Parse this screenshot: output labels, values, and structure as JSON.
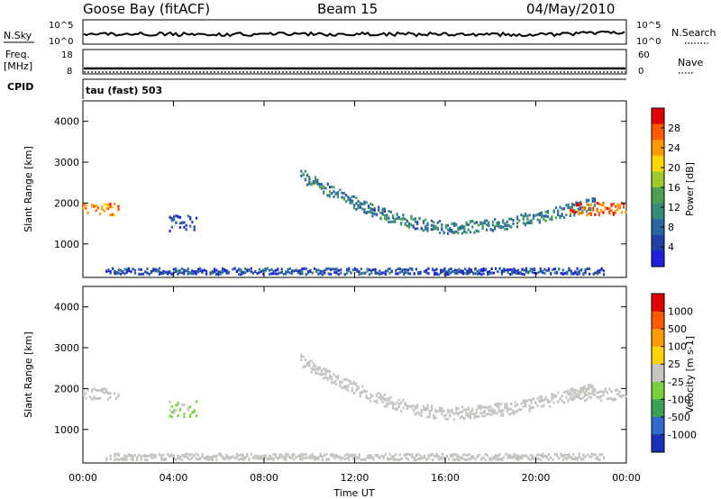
{
  "header": {
    "title": "Goose Bay (fitACF)",
    "beam": "Beam 15",
    "date": "04/May/2010"
  },
  "top_panels": {
    "nsky_label": "N.Sky",
    "nsky_ticks": [
      "10^5",
      "10^0"
    ],
    "nsearch_label": "N.Search",
    "freq_label": "Freq.",
    "freq_unit": "[MHz]",
    "freq_ticks": [
      "18",
      "8"
    ],
    "nave_label": "Nave",
    "nave_ticks": [
      "60",
      "0"
    ],
    "cpid_label": "CPID",
    "cpid_text": "tau (fast) 503"
  },
  "chart_data": [
    {
      "type": "heatmap",
      "title": "",
      "ylabel": "Slant Range [km]",
      "xlabel": "",
      "xlim": [
        0,
        24
      ],
      "ylim": [
        180,
        4500
      ],
      "yticks": [
        1000,
        2000,
        3000,
        4000
      ],
      "colorbar": {
        "label": "Power [dB]",
        "ticks": [
          "4",
          "8",
          "12",
          "16",
          "20",
          "24",
          "28"
        ],
        "colors": [
          "#1f1fe0",
          "#2040a8",
          "#2a66a0",
          "#3a8a7a",
          "#4aa050",
          "#9ccc2a",
          "#ffd700",
          "#ff9a00",
          "#ff5a00",
          "#e00000"
        ]
      },
      "features": [
        {
          "name": "near-range band",
          "t": [
            1,
            23
          ],
          "range_km": [
            250,
            400
          ],
          "power_db": 6
        },
        {
          "name": "curved echo arc",
          "t": [
            9.6,
            22.6
          ],
          "range_km_start": 2700,
          "range_km_min": 1400,
          "range_km_end": 2000,
          "power_db": 10
        },
        {
          "name": "early echo",
          "t": [
            0,
            1.6
          ],
          "range_km": [
            1700,
            2000
          ],
          "power_db": 24
        },
        {
          "name": "late echo",
          "t": [
            21.5,
            24
          ],
          "range_km": [
            1700,
            2000
          ],
          "power_db": 26
        },
        {
          "name": "patch 04-05 UT",
          "t": [
            3.8,
            5.0
          ],
          "range_km": [
            1300,
            1700
          ],
          "power_db": 6
        }
      ]
    },
    {
      "type": "heatmap",
      "title": "",
      "ylabel": "Slant Range [km]",
      "xlabel": "Time UT",
      "xlim": [
        0,
        24
      ],
      "ylim": [
        180,
        4500
      ],
      "yticks": [
        1000,
        2000,
        3000,
        4000
      ],
      "xticks": [
        "00:00",
        "04:00",
        "08:00",
        "12:00",
        "16:00",
        "20:00",
        "00:00"
      ],
      "colorbar": {
        "label": "Velocity [m s-1]",
        "ticks": [
          "1000",
          "500",
          "100",
          "25",
          "-25",
          "-100",
          "-500",
          "-1000"
        ],
        "colors": [
          "#1a2fb8",
          "#2f6ad0",
          "#3ca058",
          "#7ad03c",
          "#c4c4c0",
          "#ffd200",
          "#ff9a00",
          "#ff5a00",
          "#e00000"
        ]
      },
      "features": [
        {
          "name": "near-range band",
          "t": [
            1,
            23
          ],
          "range_km": [
            250,
            400
          ],
          "velocity_ms": 0
        },
        {
          "name": "curved echo arc",
          "t": [
            9.6,
            22.6
          ],
          "range_km_start": 2700,
          "range_km_min": 1400,
          "range_km_end": 2000,
          "velocity_ms": 0
        },
        {
          "name": "early echo",
          "t": [
            0,
            1.6
          ],
          "range_km": [
            1700,
            2000
          ],
          "velocity_ms": 0
        },
        {
          "name": "late echo",
          "t": [
            21.5,
            24
          ],
          "range_km": [
            1700,
            2000
          ],
          "velocity_ms": 0
        },
        {
          "name": "patch 04-05 UT",
          "t": [
            3.8,
            5.0
          ],
          "range_km": [
            1300,
            1700
          ],
          "velocity_ms": 50
        }
      ]
    }
  ]
}
